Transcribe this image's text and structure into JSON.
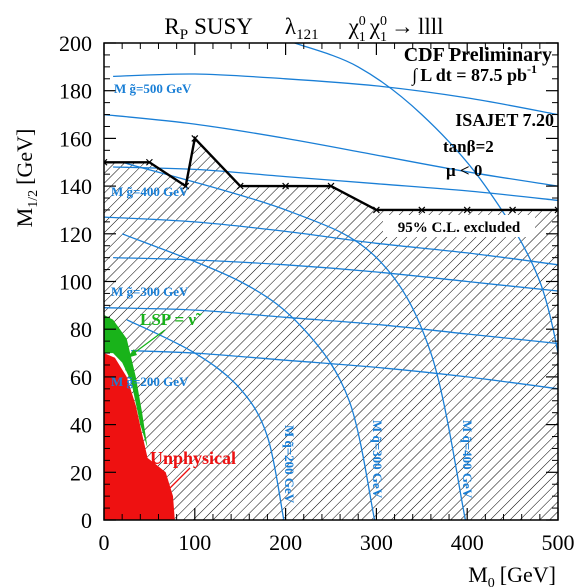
{
  "chart_data": {
    "type": "line",
    "title_parts": {
      "model": "R",
      "model_sub": "P",
      "model_rest": "SUSY",
      "coupling": "λ",
      "coupling_sub": "121",
      "process_a": "χ",
      "process_a_sup": "0",
      "process_a_sub": "1",
      "process_b": "χ",
      "process_b_sup": "0",
      "process_b_sub": "1",
      "process_arrow": "→",
      "process_final": "llll"
    },
    "xlabel": {
      "main": "M",
      "sub": "0",
      "unit": "[GeV]"
    },
    "ylabel": {
      "main": "M",
      "sub": "1/2",
      "unit": "[GeV]"
    },
    "xlim": [
      0,
      500
    ],
    "ylim": [
      0,
      200
    ],
    "xticks": [
      "0",
      "100",
      "200",
      "300",
      "400",
      "500"
    ],
    "yticks": [
      "0",
      "20",
      "40",
      "60",
      "80",
      "100",
      "120",
      "140",
      "160",
      "180",
      "200"
    ],
    "annotations": {
      "experiment": "CDF Preliminary",
      "lumi_prefix": "∫",
      "lumi": "L dt = 87.5 pb",
      "lumi_sup": "-1",
      "generator": "ISAJET 7.20",
      "tanbeta": "tanβ=2",
      "mu": "μ < 0",
      "excluded": "95% C.L. excluded",
      "lsp": "LSP = ν̃",
      "unphysical": "Unphysical",
      "gluino_500": "M g̃=500 GeV",
      "gluino_400": "M g̃=400 GeV",
      "gluino_300": "M g̃=300 GeV",
      "gluino_200": "M g̃=200 GeV",
      "squark_200": "M q̃=200 GeV",
      "squark_300": "M q̃=300 GeV",
      "squark_400": "M q̃=400 GeV"
    },
    "exclusion_boundary": {
      "x": [
        0,
        50,
        90,
        100,
        150,
        200,
        250,
        300,
        350,
        400,
        450,
        500
      ],
      "y": [
        150,
        150,
        140,
        160,
        140,
        140,
        140,
        130,
        130,
        130,
        130,
        130
      ]
    },
    "exclusion_points_x": [
      0,
      50,
      90,
      100,
      150,
      200,
      250,
      300,
      350,
      400,
      450,
      500
    ],
    "gluino_contours": [
      {
        "value": "500",
        "x": [
          10,
          100,
          200,
          300,
          400,
          500
        ],
        "y": [
          186,
          187,
          185,
          182,
          177,
          170
        ]
      },
      {
        "value": "400",
        "x": [
          10,
          100,
          200,
          300,
          400,
          500
        ],
        "y": [
          148,
          147,
          144,
          141,
          138,
          134
        ]
      },
      {
        "value": "300",
        "x": [
          10,
          100,
          200,
          300,
          400,
          500
        ],
        "y": [
          110,
          109,
          107,
          104,
          100,
          96
        ]
      },
      {
        "value": "200",
        "x": [
          30,
          100,
          200,
          300,
          400,
          500
        ],
        "y": [
          71,
          70,
          67,
          64,
          60,
          55
        ]
      }
    ],
    "extra_curves": [
      {
        "x": [
          0,
          100,
          200,
          300,
          400,
          500
        ],
        "y": [
          170,
          166,
          160,
          153,
          146,
          140
        ]
      },
      {
        "x": [
          0,
          100,
          200,
          300,
          400,
          500
        ],
        "y": [
          127,
          125,
          121,
          116,
          112,
          107
        ]
      },
      {
        "x": [
          0,
          100,
          200,
          300,
          400,
          500
        ],
        "y": [
          89,
          88,
          85,
          82,
          78,
          74
        ]
      }
    ],
    "squark_contours": [
      {
        "value": "200",
        "x": [
          25,
          100,
          150,
          180,
          198
        ],
        "y": [
          84,
          70,
          55,
          35,
          0
        ]
      },
      {
        "value": "300",
        "x": [
          20,
          150,
          220,
          270,
          298
        ],
        "y": [
          120,
          100,
          80,
          50,
          0
        ]
      },
      {
        "value": "400",
        "x": [
          20,
          200,
          300,
          360,
          398
        ],
        "y": [
          150,
          130,
          110,
          70,
          0
        ]
      },
      {
        "value": "steep",
        "x": [
          210,
          280,
          350,
          420,
          480,
          510
        ],
        "y": [
          200,
          190,
          170,
          140,
          100,
          50
        ]
      }
    ],
    "lsp_sneutrino_region": {
      "x": [
        0,
        10,
        25,
        35,
        42,
        48,
        40,
        30,
        20,
        10,
        0
      ],
      "y": [
        86,
        84,
        76,
        60,
        45,
        30,
        40,
        58,
        66,
        70,
        70
      ]
    },
    "unphysical_region": {
      "x": [
        0,
        12,
        25,
        35,
        42,
        48,
        55,
        68,
        76,
        78,
        0
      ],
      "y": [
        70,
        68,
        60,
        48,
        36,
        26,
        24,
        20,
        10,
        0,
        0
      ]
    },
    "hatched_region": {
      "x": [
        0,
        50,
        90,
        100,
        150,
        200,
        250,
        300,
        350,
        400,
        450,
        500,
        500,
        78,
        76,
        68,
        55,
        48,
        42,
        35,
        25,
        10,
        0
      ],
      "y": [
        150,
        150,
        140,
        160,
        140,
        140,
        140,
        130,
        130,
        130,
        130,
        130,
        0,
        0,
        10,
        20,
        24,
        26,
        36,
        48,
        60,
        84,
        86
      ]
    },
    "colors": {
      "boundary": "#000000",
      "contours": "#1a7fd6",
      "lsp": "#19b31a",
      "unphysical": "#ee1111",
      "hatch": "#000000"
    }
  }
}
